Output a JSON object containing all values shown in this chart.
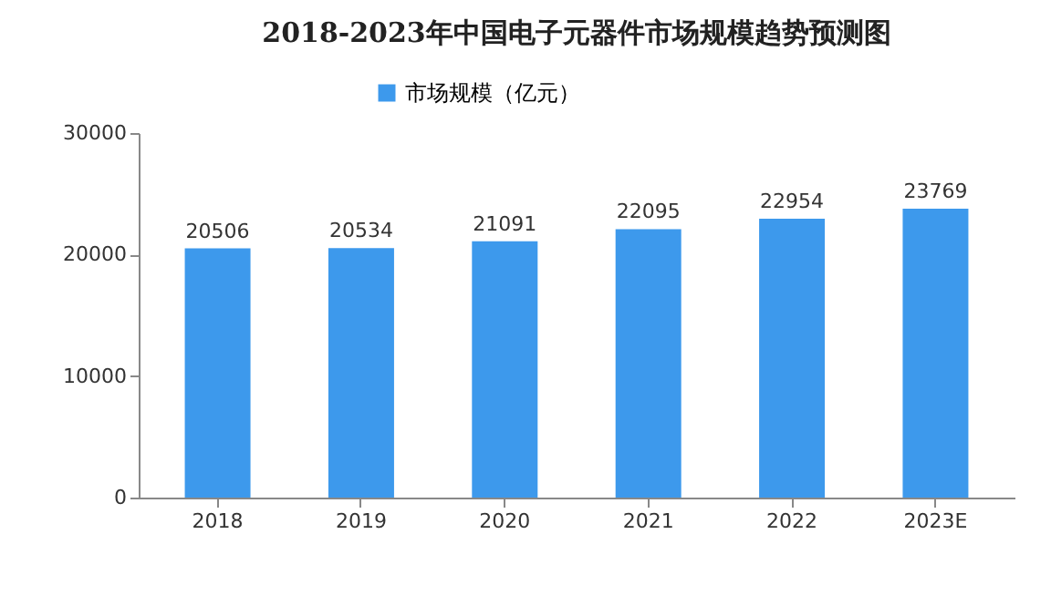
{
  "chart_data": {
    "type": "bar",
    "title": "2018-2023年中国电子元器件市场规模趋势预测图",
    "categories": [
      "2018",
      "2019",
      "2020",
      "2021",
      "2022",
      "2023E"
    ],
    "series": [
      {
        "name": "市场规模（亿元）",
        "color": "#3d99ec",
        "values": [
          20506,
          20534,
          21091,
          22095,
          22954,
          23769
        ]
      }
    ],
    "ylim": [
      0,
      30000
    ],
    "yticks": [
      0,
      10000,
      20000,
      30000
    ],
    "grid": false,
    "legend": "top",
    "data_labels": true
  }
}
